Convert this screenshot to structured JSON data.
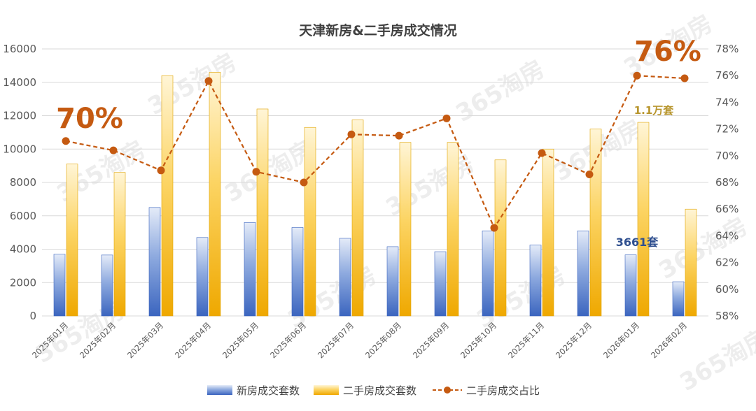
{
  "chart_data": {
    "type": "bar",
    "title": "天津新房&二手房成交情况",
    "categories": [
      "2025年01月",
      "2025年02月",
      "2025年03月",
      "2025年04月",
      "2025年05月",
      "2025年06月",
      "2025年07月",
      "2025年08月",
      "2025年09月",
      "2025年10月",
      "2025年11月",
      "2025年12月",
      "2026年01月",
      "2026年02月"
    ],
    "series": [
      {
        "name": "新房成交套数",
        "kind": "bar",
        "axis": "left",
        "color": "#4472c4",
        "values": [
          3700,
          3650,
          6500,
          4700,
          5600,
          5300,
          4650,
          4150,
          3850,
          5100,
          4250,
          5100,
          3661,
          2050
        ]
      },
      {
        "name": "二手房成交套数",
        "kind": "bar",
        "axis": "left",
        "color": "#f5b800",
        "values": [
          9100,
          8600,
          14400,
          14600,
          12400,
          11300,
          11750,
          10400,
          10400,
          9350,
          10000,
          11200,
          11600,
          6400
        ]
      },
      {
        "name": "二手房成交占比",
        "kind": "line",
        "axis": "right",
        "color": "#c55a11",
        "values": [
          71.1,
          70.4,
          68.9,
          75.6,
          68.8,
          68.0,
          71.6,
          71.5,
          72.8,
          64.6,
          70.2,
          68.6,
          76.0,
          75.8
        ]
      }
    ],
    "y_left": {
      "min": 0,
      "max": 16000,
      "ticks": [
        "0",
        "2000",
        "4000",
        "6000",
        "8000",
        "10000",
        "12000",
        "14000",
        "16000"
      ]
    },
    "y_right": {
      "min": 58,
      "max": 78,
      "ticks": [
        "58%",
        "60%",
        "62%",
        "64%",
        "66%",
        "68%",
        "70%",
        "72%",
        "74%",
        "76%",
        "78%"
      ]
    },
    "grid": true,
    "legend_position": "bottom",
    "annotations": [
      {
        "text": "70%",
        "color": "#c55a11"
      },
      {
        "text": "76%",
        "color": "#c55a11"
      },
      {
        "text": "1.1万套",
        "color": "#b8962e"
      },
      {
        "text": "3661套",
        "color": "#2f4f8f"
      }
    ],
    "watermark": "365淘房"
  }
}
